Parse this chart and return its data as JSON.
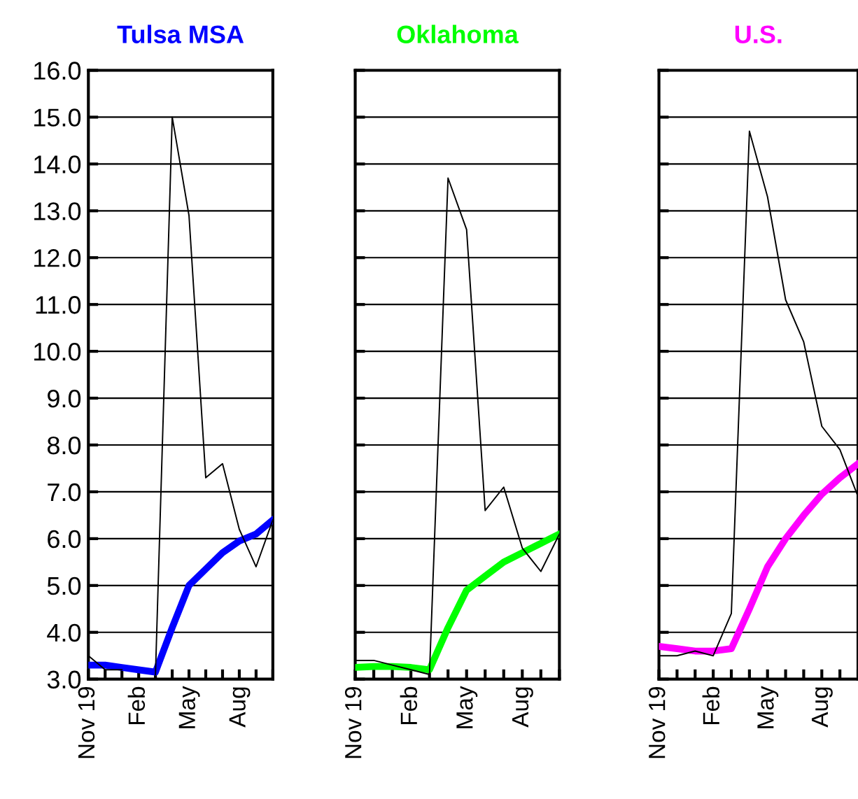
{
  "chart_data": [
    {
      "type": "line",
      "title": "Tulsa MSA",
      "categories": [
        "Nov 19",
        null,
        null,
        "Feb",
        null,
        null,
        "May",
        null,
        null,
        "Aug",
        null,
        null
      ],
      "series": [
        {
          "color": "#000000",
          "values": [
            3.5,
            3.2,
            3.2,
            null,
            3.1,
            15.0,
            12.9,
            7.3,
            7.6,
            6.2,
            5.4,
            6.4
          ]
        },
        {
          "color": "#0000ff",
          "values": [
            3.3,
            3.3,
            3.25,
            3.2,
            3.15,
            4.1,
            5.0,
            5.35,
            5.7,
            5.95,
            6.1,
            6.4
          ]
        }
      ],
      "ylim": [
        3,
        16
      ],
      "yticks": [
        {
          "value": 3,
          "label": "3.0"
        },
        {
          "value": 4,
          "label": "4.0"
        },
        {
          "value": 5,
          "label": "5.0"
        },
        {
          "value": 6,
          "label": "6.0"
        },
        {
          "value": 7,
          "label": "7.0"
        },
        {
          "value": 8,
          "label": "8.0"
        },
        {
          "value": 9,
          "label": "9.0"
        },
        {
          "value": 10,
          "label": "10.0"
        },
        {
          "value": 11,
          "label": "11.0"
        },
        {
          "value": 12,
          "label": "12.0"
        },
        {
          "value": 13,
          "label": "13.0"
        },
        {
          "value": 14,
          "label": "14.0"
        },
        {
          "value": 15,
          "label": "15.0"
        },
        {
          "value": 16,
          "label": "16.0"
        }
      ],
      "grid": "y",
      "legend": false
    },
    {
      "type": "line",
      "title": "Oklahoma",
      "categories": [
        "Nov 19",
        null,
        null,
        "Feb",
        null,
        null,
        "May",
        null,
        null,
        "Aug",
        null,
        null
      ],
      "series": [
        {
          "color": "#000000",
          "values": [
            3.4,
            3.4,
            3.3,
            3.2,
            3.1,
            13.7,
            12.6,
            6.6,
            7.1,
            5.8,
            5.3,
            6.1
          ]
        },
        {
          "color": "#00ff00",
          "values": [
            3.25,
            3.27,
            3.27,
            3.25,
            3.2,
            4.1,
            4.9,
            5.2,
            5.5,
            5.7,
            5.9,
            6.1
          ]
        }
      ],
      "ylim": [
        3,
        16
      ],
      "yticks": [
        3,
        4,
        5,
        6,
        7,
        8,
        9,
        10,
        11,
        12,
        13,
        14,
        15,
        16
      ],
      "tick_labels": "x",
      "grid": "y",
      "legend": false
    },
    {
      "type": "line",
      "title": "U.S.",
      "categories": [
        "Nov 19",
        null,
        null,
        "Feb",
        null,
        null,
        "May",
        null,
        null,
        "Aug",
        null,
        null
      ],
      "series": [
        {
          "color": "#000000",
          "values": [
            3.5,
            3.5,
            3.6,
            3.5,
            4.4,
            14.7,
            13.3,
            11.1,
            10.2,
            8.4,
            7.9,
            6.9
          ]
        },
        {
          "color": "#ff00ff",
          "values": [
            3.7,
            3.65,
            3.6,
            3.6,
            3.65,
            4.5,
            5.4,
            6.0,
            6.5,
            6.95,
            7.3,
            7.6
          ]
        }
      ],
      "ylim": [
        3,
        16
      ],
      "yticks": [
        3,
        4,
        5,
        6,
        7,
        8,
        9,
        10,
        11,
        12,
        13,
        14,
        15,
        16
      ],
      "tick_labels": "x",
      "grid": "y",
      "legend": false
    }
  ]
}
